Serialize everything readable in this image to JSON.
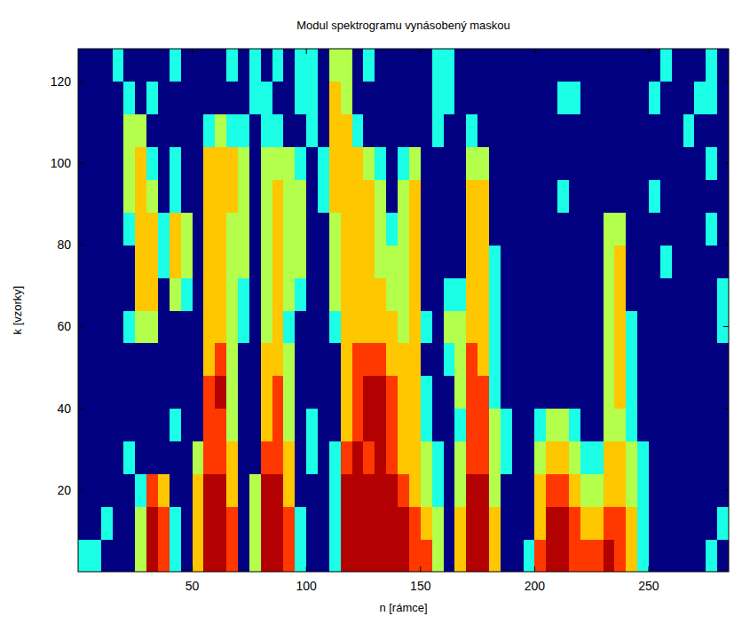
{
  "chart_data": {
    "type": "heatmap",
    "title": "Modul spektrogramu vynásobený maskou",
    "x_label": "n [rámce]",
    "y_label": "k [vzorky]",
    "xlim": [
      0,
      285
    ],
    "ylim": [
      0,
      128
    ],
    "xticks": [
      50,
      100,
      150,
      200,
      250
    ],
    "yticks": [
      20,
      40,
      60,
      80,
      100,
      120
    ],
    "grid": false,
    "zlim": [
      0,
      100
    ],
    "x": [
      2.5,
      7.5,
      12.5,
      17.5,
      22.5,
      27.5,
      32.5,
      37.5,
      42.5,
      47.5,
      52.5,
      57.5,
      62.5,
      67.5,
      72.5,
      77.5,
      82.5,
      87.5,
      92.5,
      97.5,
      102.5,
      107.5,
      112.5,
      117.5,
      122.5,
      127.5,
      132.5,
      137.5,
      142.5,
      147.5,
      152.5,
      157.5,
      162.5,
      167.5,
      172.5,
      177.5,
      182.5,
      187.5,
      192.5,
      197.5,
      202.5,
      207.5,
      212.5,
      217.5,
      222.5,
      227.5,
      232.5,
      237.5,
      242.5,
      247.5,
      252.5,
      257.5,
      262.5,
      267.5,
      272.5,
      277.5,
      282.5
    ],
    "y": [
      4,
      12,
      20,
      28,
      36,
      44,
      52,
      60,
      68,
      76,
      84,
      92,
      100,
      108,
      116,
      124
    ],
    "z": [
      [
        40,
        40,
        0,
        0,
        0,
        55,
        95,
        82,
        40,
        0,
        68,
        95,
        95,
        82,
        0,
        55,
        95,
        95,
        82,
        40,
        0,
        0,
        40,
        95,
        95,
        95,
        95,
        95,
        95,
        82,
        82,
        55,
        0,
        68,
        95,
        95,
        68,
        0,
        0,
        40,
        82,
        95,
        95,
        82,
        82,
        82,
        95,
        82,
        68,
        40,
        0,
        0,
        0,
        0,
        0,
        40,
        0
      ],
      [
        0,
        0,
        40,
        0,
        0,
        55,
        95,
        82,
        40,
        0,
        68,
        95,
        95,
        82,
        0,
        55,
        95,
        95,
        82,
        40,
        0,
        0,
        40,
        95,
        95,
        95,
        95,
        95,
        95,
        82,
        68,
        55,
        0,
        68,
        95,
        95,
        68,
        0,
        0,
        0,
        68,
        95,
        95,
        82,
        68,
        68,
        82,
        82,
        68,
        40,
        0,
        0,
        0,
        0,
        0,
        0,
        40
      ],
      [
        0,
        0,
        0,
        0,
        0,
        40,
        82,
        68,
        0,
        0,
        68,
        95,
        95,
        68,
        0,
        55,
        95,
        95,
        68,
        0,
        0,
        0,
        40,
        95,
        95,
        95,
        95,
        95,
        82,
        68,
        55,
        40,
        0,
        55,
        95,
        95,
        55,
        0,
        0,
        0,
        68,
        82,
        82,
        68,
        55,
        55,
        68,
        68,
        55,
        40,
        0,
        0,
        0,
        0,
        0,
        0,
        0
      ],
      [
        0,
        0,
        0,
        0,
        40,
        0,
        0,
        0,
        0,
        0,
        55,
        82,
        82,
        68,
        0,
        0,
        82,
        82,
        68,
        0,
        40,
        0,
        40,
        82,
        95,
        82,
        95,
        82,
        68,
        68,
        55,
        40,
        0,
        55,
        82,
        82,
        55,
        40,
        0,
        0,
        55,
        68,
        68,
        55,
        40,
        40,
        68,
        68,
        55,
        40,
        0,
        0,
        0,
        0,
        0,
        0,
        0
      ],
      [
        0,
        0,
        0,
        0,
        0,
        0,
        0,
        0,
        40,
        0,
        0,
        82,
        82,
        55,
        0,
        0,
        68,
        82,
        55,
        0,
        40,
        0,
        0,
        68,
        82,
        95,
        95,
        82,
        68,
        68,
        40,
        0,
        0,
        40,
        82,
        82,
        55,
        40,
        0,
        0,
        40,
        55,
        55,
        40,
        0,
        0,
        55,
        55,
        40,
        0,
        0,
        0,
        0,
        0,
        0,
        0,
        0
      ],
      [
        0,
        0,
        0,
        0,
        0,
        0,
        0,
        0,
        0,
        0,
        0,
        82,
        95,
        55,
        0,
        0,
        68,
        82,
        55,
        0,
        0,
        0,
        0,
        68,
        82,
        95,
        95,
        82,
        68,
        68,
        40,
        0,
        0,
        55,
        82,
        82,
        40,
        0,
        0,
        0,
        0,
        0,
        0,
        0,
        0,
        0,
        55,
        68,
        40,
        0,
        0,
        0,
        0,
        0,
        0,
        0,
        0
      ],
      [
        0,
        0,
        0,
        0,
        0,
        0,
        0,
        0,
        0,
        0,
        0,
        68,
        82,
        55,
        0,
        0,
        68,
        68,
        55,
        0,
        0,
        0,
        0,
        68,
        82,
        82,
        82,
        68,
        68,
        68,
        0,
        0,
        40,
        55,
        82,
        68,
        40,
        0,
        0,
        0,
        0,
        0,
        0,
        0,
        0,
        0,
        55,
        68,
        40,
        0,
        0,
        0,
        0,
        0,
        0,
        0,
        0
      ],
      [
        0,
        0,
        0,
        0,
        40,
        55,
        55,
        0,
        0,
        0,
        0,
        68,
        68,
        55,
        40,
        0,
        55,
        68,
        40,
        0,
        0,
        0,
        40,
        68,
        68,
        68,
        68,
        68,
        55,
        68,
        40,
        0,
        55,
        55,
        68,
        68,
        40,
        0,
        0,
        0,
        0,
        0,
        0,
        0,
        0,
        0,
        55,
        68,
        40,
        0,
        0,
        0,
        0,
        0,
        0,
        0,
        40
      ],
      [
        0,
        0,
        0,
        0,
        0,
        68,
        68,
        0,
        55,
        40,
        0,
        68,
        68,
        55,
        40,
        0,
        55,
        68,
        55,
        40,
        0,
        0,
        55,
        68,
        68,
        68,
        68,
        55,
        55,
        68,
        0,
        0,
        40,
        40,
        68,
        68,
        40,
        0,
        0,
        0,
        0,
        0,
        0,
        0,
        0,
        0,
        55,
        68,
        0,
        0,
        0,
        0,
        0,
        0,
        0,
        0,
        40
      ],
      [
        0,
        0,
        0,
        0,
        0,
        68,
        68,
        40,
        68,
        55,
        0,
        68,
        68,
        55,
        55,
        0,
        55,
        68,
        55,
        55,
        0,
        0,
        55,
        68,
        68,
        68,
        55,
        55,
        55,
        68,
        0,
        0,
        0,
        0,
        68,
        68,
        40,
        0,
        0,
        0,
        0,
        0,
        0,
        0,
        0,
        0,
        55,
        68,
        0,
        0,
        0,
        40,
        0,
        0,
        0,
        0,
        0
      ],
      [
        0,
        0,
        0,
        0,
        40,
        68,
        68,
        40,
        68,
        55,
        0,
        68,
        68,
        55,
        55,
        0,
        55,
        68,
        55,
        55,
        0,
        0,
        55,
        68,
        68,
        68,
        55,
        40,
        55,
        68,
        0,
        0,
        0,
        0,
        68,
        68,
        0,
        0,
        0,
        0,
        0,
        0,
        0,
        0,
        0,
        0,
        55,
        55,
        0,
        0,
        0,
        0,
        0,
        0,
        0,
        40,
        0
      ],
      [
        0,
        0,
        0,
        0,
        55,
        68,
        55,
        0,
        40,
        0,
        0,
        68,
        68,
        68,
        55,
        0,
        55,
        68,
        55,
        55,
        0,
        40,
        68,
        68,
        68,
        68,
        55,
        0,
        55,
        68,
        0,
        0,
        0,
        0,
        68,
        68,
        0,
        0,
        0,
        0,
        0,
        0,
        40,
        0,
        0,
        0,
        0,
        0,
        0,
        0,
        40,
        0,
        0,
        0,
        0,
        0,
        0
      ],
      [
        0,
        0,
        0,
        0,
        55,
        68,
        40,
        0,
        40,
        0,
        0,
        68,
        68,
        68,
        55,
        0,
        55,
        55,
        55,
        40,
        0,
        40,
        68,
        68,
        68,
        55,
        40,
        0,
        40,
        55,
        0,
        0,
        0,
        0,
        55,
        55,
        0,
        0,
        0,
        0,
        0,
        0,
        0,
        0,
        0,
        0,
        0,
        0,
        0,
        0,
        0,
        0,
        0,
        0,
        0,
        40,
        0
      ],
      [
        0,
        0,
        0,
        0,
        55,
        55,
        0,
        0,
        0,
        0,
        0,
        40,
        55,
        40,
        40,
        0,
        40,
        40,
        0,
        0,
        40,
        0,
        68,
        68,
        40,
        0,
        0,
        0,
        0,
        0,
        0,
        40,
        0,
        0,
        40,
        0,
        0,
        0,
        0,
        0,
        0,
        0,
        0,
        0,
        0,
        0,
        0,
        0,
        0,
        0,
        0,
        0,
        0,
        40,
        0,
        0,
        0
      ],
      [
        0,
        0,
        0,
        0,
        40,
        0,
        40,
        0,
        0,
        0,
        0,
        0,
        0,
        0,
        0,
        40,
        40,
        0,
        0,
        40,
        40,
        0,
        68,
        55,
        0,
        0,
        0,
        0,
        0,
        0,
        0,
        40,
        40,
        0,
        0,
        0,
        0,
        0,
        0,
        0,
        0,
        0,
        40,
        40,
        0,
        0,
        0,
        0,
        0,
        0,
        40,
        0,
        0,
        0,
        40,
        40,
        0
      ],
      [
        0,
        0,
        0,
        40,
        0,
        0,
        0,
        0,
        40,
        0,
        0,
        0,
        0,
        40,
        0,
        40,
        0,
        40,
        0,
        40,
        40,
        0,
        55,
        55,
        0,
        40,
        0,
        0,
        0,
        0,
        0,
        40,
        40,
        0,
        0,
        0,
        0,
        0,
        0,
        0,
        0,
        0,
        0,
        0,
        0,
        0,
        0,
        0,
        0,
        0,
        0,
        40,
        0,
        0,
        0,
        40,
        0
      ]
    ]
  }
}
